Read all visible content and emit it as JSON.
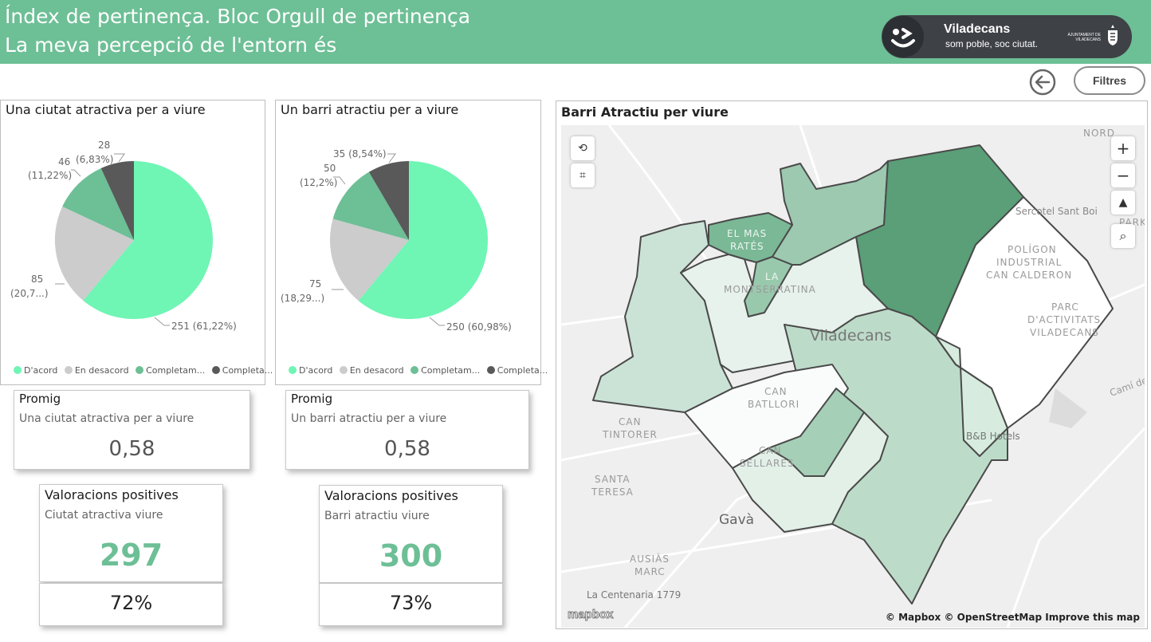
{
  "header": {
    "title_line1": "Índex de pertinença. Bloc Orgull de pertinença",
    "title_line2": "La meva percepció de l'entorn és",
    "logo_name": "Viladecans",
    "logo_tagline": "som poble, soc ciutat.",
    "logo_ajuntament": "AJUNTAMENT DE VILADECANS",
    "bg_color": "#6dbf96"
  },
  "toolbar": {
    "back_icon": "arrow-left-circle-icon",
    "filters_label": "Filtres"
  },
  "pie_left": {
    "title": "Una ciutat atractiva per a viure",
    "slices": [
      {
        "value": 251,
        "label": "251 (61,22%)",
        "color": "#6ff5b4"
      },
      {
        "value": 85,
        "label_a": "85",
        "label_b": "(20,7...)",
        "color": "#cccccc"
      },
      {
        "value": 46,
        "label_a": "46",
        "label_b": "(11,22%)",
        "color": "#6dbf96"
      },
      {
        "value": 28,
        "label_a": "28",
        "label_b": "(6,83%)",
        "color": "#595959"
      }
    ],
    "legend": [
      "D'acord",
      "En desacord",
      "Completam...",
      "Completa..."
    ]
  },
  "pie_right": {
    "title": "Un barri atractiu per a viure",
    "slices": [
      {
        "value": 250,
        "label": "250 (60,98%)",
        "color": "#6ff5b4"
      },
      {
        "value": 75,
        "label_a": "75",
        "label_b": "(18,29...)",
        "color": "#cccccc"
      },
      {
        "value": 50,
        "label_a": "50",
        "label_b": "(12,2%)",
        "color": "#6dbf96"
      },
      {
        "value": 35,
        "label": "35 (8,54%)",
        "color": "#595959"
      }
    ],
    "legend": [
      "D'acord",
      "En desacord",
      "Completam...",
      "Completa..."
    ]
  },
  "cards": {
    "promig_left": {
      "title": "Promig",
      "subtitle": "Una ciutat atractiva per a viure",
      "value": "0,58"
    },
    "promig_right": {
      "title": "Promig",
      "subtitle": "Un barri atractiu per a viure",
      "value": "0,58"
    },
    "val_left": {
      "title": "Valoracions positives",
      "subtitle": "Ciutat atractiva viure",
      "value": "297",
      "percent": "72%"
    },
    "val_right": {
      "title": "Valoracions positives",
      "subtitle": "Barri atractiu viure",
      "value": "300",
      "percent": "73%"
    }
  },
  "map": {
    "title": "Barri Atractiu per viure",
    "labels": {
      "nord": "NORD",
      "park": "PARK",
      "sercotel": "Sercotel Sant Boi",
      "poligon1": "POLÍGON",
      "poligon2": "INDUSTRIAL",
      "poligon3": "CAN CALDERON",
      "parc1": "PARC",
      "parc2": "D'ACTIVITATS",
      "parc3": "VILADECANS",
      "mas1": "EL MAS",
      "mas2": "RATÉS",
      "montse1": "LA",
      "montse2": "MONTSERRATINA",
      "viladecans": "Viladecans",
      "batllori1": "CAN",
      "batllori2": "BATLLORI",
      "tintorer1": "CAN",
      "tintorer2": "TINTORER",
      "sellares1": "CAN",
      "sellares2": "SELLARÈS",
      "teresa1": "SANTA",
      "teresa2": "TERESA",
      "gava": "Gavà",
      "ausias1": "AUSIÀS",
      "ausias2": "MARC",
      "centenaria": "La Centenaria 1779",
      "bb": "B&B Hotels",
      "cami": "Camí de"
    },
    "controls": {
      "zoom_in": "+",
      "zoom_out": "−",
      "compass": "▲"
    },
    "mapbox_logo": "mapbox",
    "attribution": "© Mapbox © OpenStreetMap  Improve this map"
  }
}
